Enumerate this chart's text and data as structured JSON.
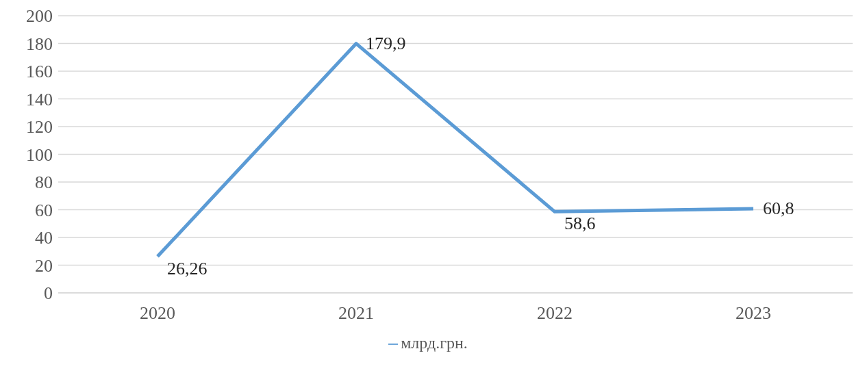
{
  "chart_data": {
    "type": "line",
    "categories": [
      "2020",
      "2021",
      "2022",
      "2023"
    ],
    "series": [
      {
        "name": "млрд.грн.",
        "color": "#5b9bd5",
        "values": [
          26.26,
          179.9,
          58.6,
          60.8
        ],
        "value_labels": [
          "26,26",
          "179,9",
          "58,6",
          "60,8"
        ]
      }
    ],
    "ylim": [
      0,
      200
    ],
    "yticks": [
      0,
      20,
      40,
      60,
      80,
      100,
      120,
      140,
      160,
      180,
      200
    ],
    "grid": "y",
    "legend": "bottom",
    "marker": "none"
  }
}
